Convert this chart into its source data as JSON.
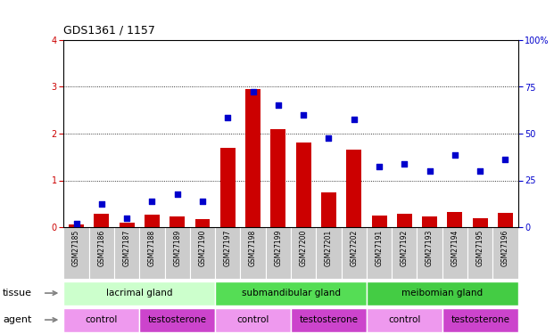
{
  "title": "GDS1361 / 1157",
  "samples": [
    "GSM27185",
    "GSM27186",
    "GSM27187",
    "GSM27188",
    "GSM27189",
    "GSM27190",
    "GSM27197",
    "GSM27198",
    "GSM27199",
    "GSM27200",
    "GSM27201",
    "GSM27202",
    "GSM27191",
    "GSM27192",
    "GSM27193",
    "GSM27194",
    "GSM27195",
    "GSM27196"
  ],
  "transformed_count": [
    0.05,
    0.28,
    0.1,
    0.27,
    0.22,
    0.18,
    1.7,
    2.95,
    2.1,
    1.8,
    0.75,
    1.65,
    0.25,
    0.28,
    0.22,
    0.32,
    0.2,
    0.3
  ],
  "percentile_rank": [
    2.0,
    12.5,
    5.0,
    13.75,
    17.5,
    13.75,
    58.75,
    72.5,
    65.0,
    60.0,
    47.5,
    57.5,
    32.5,
    33.75,
    30.0,
    38.75,
    30.0,
    36.25
  ],
  "bar_color": "#cc0000",
  "dot_color": "#0000cc",
  "ylim_left": [
    0,
    4
  ],
  "ylim_right": [
    0,
    100
  ],
  "yticks_left": [
    0,
    1,
    2,
    3,
    4
  ],
  "yticks_right": [
    0,
    25,
    50,
    75,
    100
  ],
  "tissue_groups": [
    {
      "label": "lacrimal gland",
      "start": 0,
      "end": 6,
      "color": "#ccffcc"
    },
    {
      "label": "submandibular gland",
      "start": 6,
      "end": 12,
      "color": "#55dd55"
    },
    {
      "label": "meibomian gland",
      "start": 12,
      "end": 18,
      "color": "#44cc44"
    }
  ],
  "agent_groups": [
    {
      "label": "control",
      "start": 0,
      "end": 3,
      "color": "#ee99ee"
    },
    {
      "label": "testosterone",
      "start": 3,
      "end": 6,
      "color": "#cc44cc"
    },
    {
      "label": "control",
      "start": 6,
      "end": 9,
      "color": "#ee99ee"
    },
    {
      "label": "testosterone",
      "start": 9,
      "end": 12,
      "color": "#cc44cc"
    },
    {
      "label": "control",
      "start": 12,
      "end": 15,
      "color": "#ee99ee"
    },
    {
      "label": "testosterone",
      "start": 15,
      "end": 18,
      "color": "#cc44cc"
    }
  ],
  "tick_bg_color": "#cccccc",
  "background_color": "#ffffff"
}
